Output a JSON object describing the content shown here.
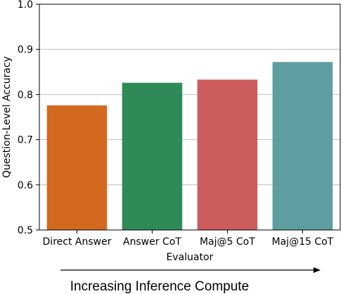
{
  "chart_data": {
    "type": "bar",
    "categories": [
      "Direct Answer",
      "Answer CoT",
      "Maj@5 CoT",
      "Maj@15 CoT"
    ],
    "values": [
      0.776,
      0.826,
      0.833,
      0.872
    ],
    "colors": [
      "#d2691e",
      "#2e8b57",
      "#cd5c5c",
      "#5f9ea0"
    ],
    "xlabel": "Evaluator",
    "ylabel": "Question-Level Accuracy",
    "ylim": [
      0.5,
      1.0
    ],
    "yticks": [
      "0.5",
      "0.6",
      "0.7",
      "0.8",
      "0.9",
      "1.0"
    ],
    "ytick_values": [
      0.5,
      0.6,
      0.7,
      0.8,
      0.9,
      1.0
    ],
    "grid": "horizontal"
  },
  "annotation": {
    "text": "Increasing Inference Compute"
  }
}
